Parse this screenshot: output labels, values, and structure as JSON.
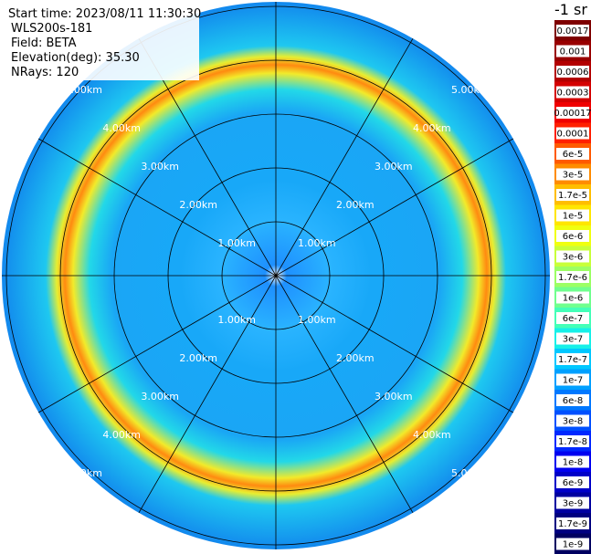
{
  "info": {
    "lines": [
      "Start time: 2023/08/11 11:30:30",
      "WLS200s-181",
      "Field: BETA",
      "Elevation(deg): 35.30",
      "NRays: 120"
    ]
  },
  "rings": {
    "labels": [
      "1.00km",
      "2.00km",
      "3.00km",
      "4.00km",
      "5.00km"
    ]
  },
  "colorbar": {
    "title": "-1 sr",
    "labels": [
      "0.0017",
      "0.001",
      "0.0006",
      "0.0003",
      "0.00017",
      "0.0001",
      "6e-5",
      "3e-5",
      "1.7e-5",
      "1e-5",
      "6e-6",
      "3e-6",
      "1.7e-6",
      "1e-6",
      "6e-7",
      "3e-7",
      "1.7e-7",
      "1e-7",
      "6e-8",
      "3e-8",
      "1.7e-8",
      "1e-8",
      "6e-9",
      "3e-9",
      "1.7e-9",
      "1e-9"
    ],
    "colors": [
      "#7f0000",
      "#990000",
      "#b30000",
      "#d40000",
      "#f00000",
      "#ff2000",
      "#ff5a00",
      "#ff8c00",
      "#ffbe00",
      "#ffe600",
      "#f0ff10",
      "#c8ff3a",
      "#9cff64",
      "#70ff8e",
      "#44ffb8",
      "#16f0e8",
      "#00c8ff",
      "#00a0ff",
      "#0078ff",
      "#0050ff",
      "#0028ff",
      "#0000f0",
      "#0000c8",
      "#0000a0",
      "#000080",
      "#000060"
    ]
  }
}
